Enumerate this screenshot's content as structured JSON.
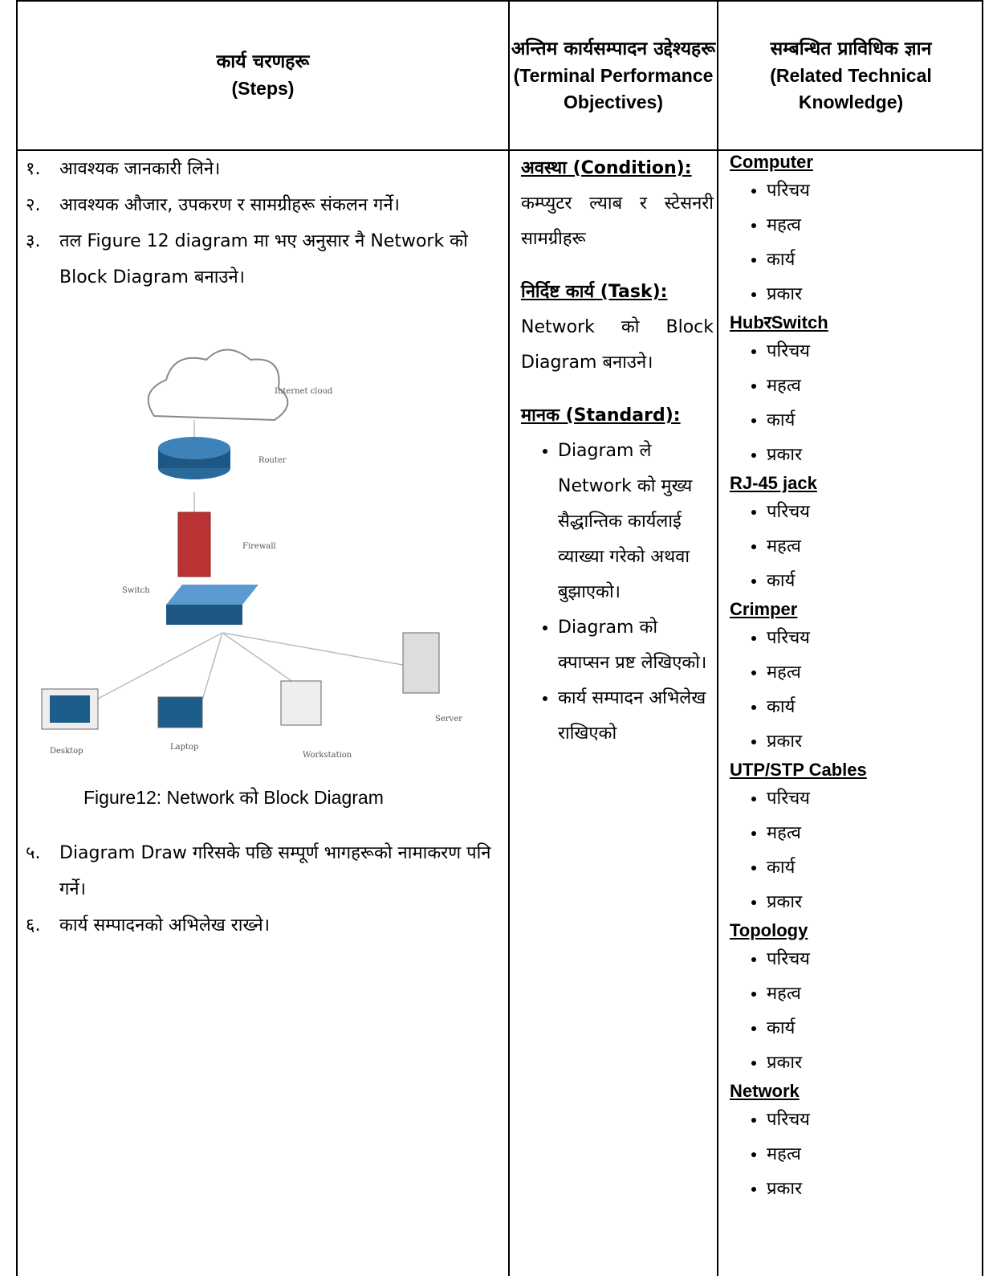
{
  "table": {
    "headers": [
      {
        "nepali": "कार्य चरणहरू",
        "english": "(Steps)"
      },
      {
        "nepali": "अन्तिम कार्यसम्पादन उद्देश्यहरू",
        "english": "(Terminal Performance Objectives)"
      },
      {
        "nepali": "सम्बन्धित प्राविधिक ज्ञान",
        "english": "(Related Technical Knowledge)"
      }
    ],
    "steps": [
      {
        "num": "१.",
        "text": "आवश्यक जानकारी लिने।"
      },
      {
        "num": "२.",
        "text": "आवश्यक औजार, उपकरण र सामग्रीहरू संकलन गर्ने।"
      },
      {
        "num": "३.",
        "text": "तल Figure 12 diagram मा भए अनुसार नै Network को Block Diagram बनाउने।"
      }
    ],
    "figure": {
      "labels": [
        "Internet cloud",
        "Router",
        "Firewall",
        "Switch",
        "Desktop",
        "Laptop",
        "Workstation",
        "Server"
      ],
      "caption": "Figure12: Network को Block Diagram"
    },
    "steps_after": [
      {
        "num": "५.",
        "text": "Diagram Draw गरिसके पछि सम्पूर्ण भागहरूको नामाकरण पनि गर्ने।"
      },
      {
        "num": "६.",
        "text": "कार्य सम्पादनको अभिलेख राख्ने।"
      }
    ],
    "objectives": {
      "condition_heading": "अवस्था (Condition):",
      "condition": "कम्प्युटर ल्याब र स्टेसनरी सामग्रीहरू",
      "task_heading": "निर्दिष्ट कार्य (Task):",
      "task": "Network को Block Diagram बनाउने।",
      "standard_heading": "मानक (Standard):",
      "standards": [
        "Diagram ले Network को मुख्य सैद्धान्तिक कार्यलाई व्याख्या गरेको अथवा बुझाएको।",
        "Diagram को क्पाप्सन प्रष्ट लेखिएको।",
        "कार्य सम्पादन अभिलेख राखिएको"
      ]
    },
    "knowledge": [
      {
        "heading": "Computer",
        "items": [
          "परिचय",
          "महत्व",
          "कार्य",
          "प्रकार"
        ]
      },
      {
        "heading": "HubरSwitch",
        "items": [
          "परिचय",
          "महत्व",
          "कार्य",
          "प्रकार"
        ]
      },
      {
        "heading": "RJ-45 jack",
        "items": [
          "परिचय",
          "महत्व",
          "कार्य"
        ]
      },
      {
        "heading": "Crimper",
        "items": [
          "परिचय",
          "महत्व",
          "कार्य",
          "प्रकार"
        ]
      },
      {
        "heading": "UTP/STP Cables",
        "items": [
          "परिचय",
          "महत्व",
          "कार्य",
          "प्रकार"
        ]
      },
      {
        "heading": "Topology",
        "items": [
          "परिचय",
          "महत्व",
          "कार्य",
          "प्रकार"
        ]
      },
      {
        "heading": "Network",
        "items": [
          "परिचय",
          "महत्व",
          "प्रकार"
        ]
      }
    ]
  }
}
